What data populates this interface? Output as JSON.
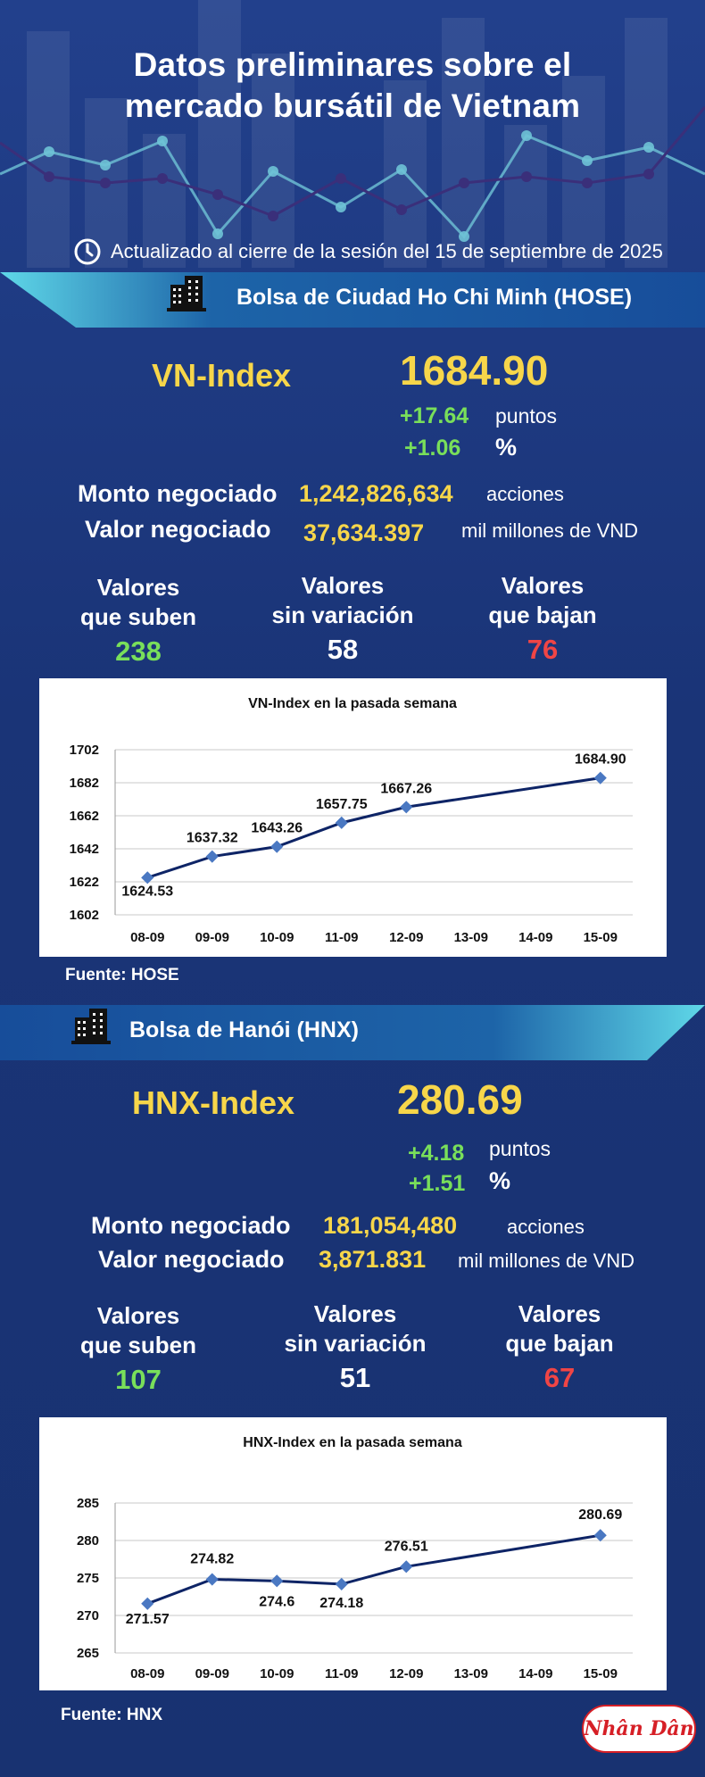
{
  "title": {
    "line1": "Datos preliminares sobre el",
    "line2": "mercado bursátil de Vietnam"
  },
  "updated": "Actualizado al cierre de la sesión del 15 de septiembre de 2025",
  "colors": {
    "accent_yellow": "#f7d64a",
    "up_green": "#79df5a",
    "down_red": "#f04545",
    "banner_cyan": "#3fc5dc",
    "background": "#1b3478"
  },
  "hose": {
    "banner": "Bolsa de Ciudad Ho Chi Minh (HOSE)",
    "index_name": "VN-Index",
    "index_value": "1684.90",
    "change_points": "+17.64",
    "points_unit": "puntos",
    "change_percent": "+1.06",
    "percent_unit": "%",
    "volume_label": "Monto negociado",
    "volume_value": "1,242,826,634",
    "volume_unit": "acciones",
    "value_label": "Valor negociado",
    "value_value": "37,634.397",
    "value_unit": "mil millones de VND",
    "up_label_1": "Valores",
    "up_label_2": "que suben",
    "up_count": "238",
    "flat_label_1": "Valores",
    "flat_label_2": "sin variación",
    "flat_count": "58",
    "down_label_1": "Valores",
    "down_label_2": "que bajan",
    "down_count": "76",
    "source": "Fuente: HOSE"
  },
  "hnx": {
    "banner": "Bolsa de Hanói (HNX)",
    "index_name": "HNX-Index",
    "index_value": "280.69",
    "change_points": "+4.18",
    "points_unit": "puntos",
    "change_percent": "+1.51",
    "percent_unit": "%",
    "volume_label": "Monto negociado",
    "volume_value": "181,054,480",
    "volume_unit": "acciones",
    "value_label": "Valor negociado",
    "value_value": "3,871.831",
    "value_unit": "mil millones de VND",
    "up_label_1": "Valores",
    "up_label_2": "que suben",
    "up_count": "107",
    "flat_label_1": "Valores",
    "flat_label_2": "sin variación",
    "flat_count": "51",
    "down_label_1": "Valores",
    "down_label_2": "que bajan",
    "down_count": "67",
    "source": "Fuente:  HNX"
  },
  "logo_text": "Nhân Dân",
  "chart_data": [
    {
      "type": "line",
      "title": "VN-Index en la pasada semana",
      "categories": [
        "08-09",
        "09-09",
        "10-09",
        "11-09",
        "12-09",
        "13-09",
        "14-09",
        "15-09"
      ],
      "series": [
        {
          "values": [
            1624.53,
            1637.32,
            1643.26,
            1657.75,
            1667.26,
            null,
            null,
            1684.9
          ]
        }
      ],
      "data_labels": [
        "1624.53",
        "1637.32",
        "1643.26",
        "1657.75",
        "1667.26",
        "",
        "",
        "1684.90"
      ],
      "yticks": [
        1602,
        1622,
        1642,
        1662,
        1682,
        1702
      ],
      "ylim": [
        1602,
        1702
      ],
      "grid": true,
      "line_color": "#0e2466",
      "marker_color": "#4a78c2"
    },
    {
      "type": "line",
      "title": "HNX-Index en la pasada semana",
      "categories": [
        "08-09",
        "09-09",
        "10-09",
        "11-09",
        "12-09",
        "13-09",
        "14-09",
        "15-09"
      ],
      "series": [
        {
          "values": [
            271.57,
            274.82,
            274.6,
            274.18,
            276.51,
            null,
            null,
            280.69
          ]
        }
      ],
      "data_labels": [
        "271.57",
        "274.82",
        "274.6",
        "274.18",
        "276.51",
        "",
        "",
        "280.69"
      ],
      "yticks": [
        265,
        270,
        275,
        280,
        285
      ],
      "ylim": [
        265,
        285
      ],
      "grid": true,
      "line_color": "#0e2466",
      "marker_color": "#4a78c2"
    }
  ]
}
